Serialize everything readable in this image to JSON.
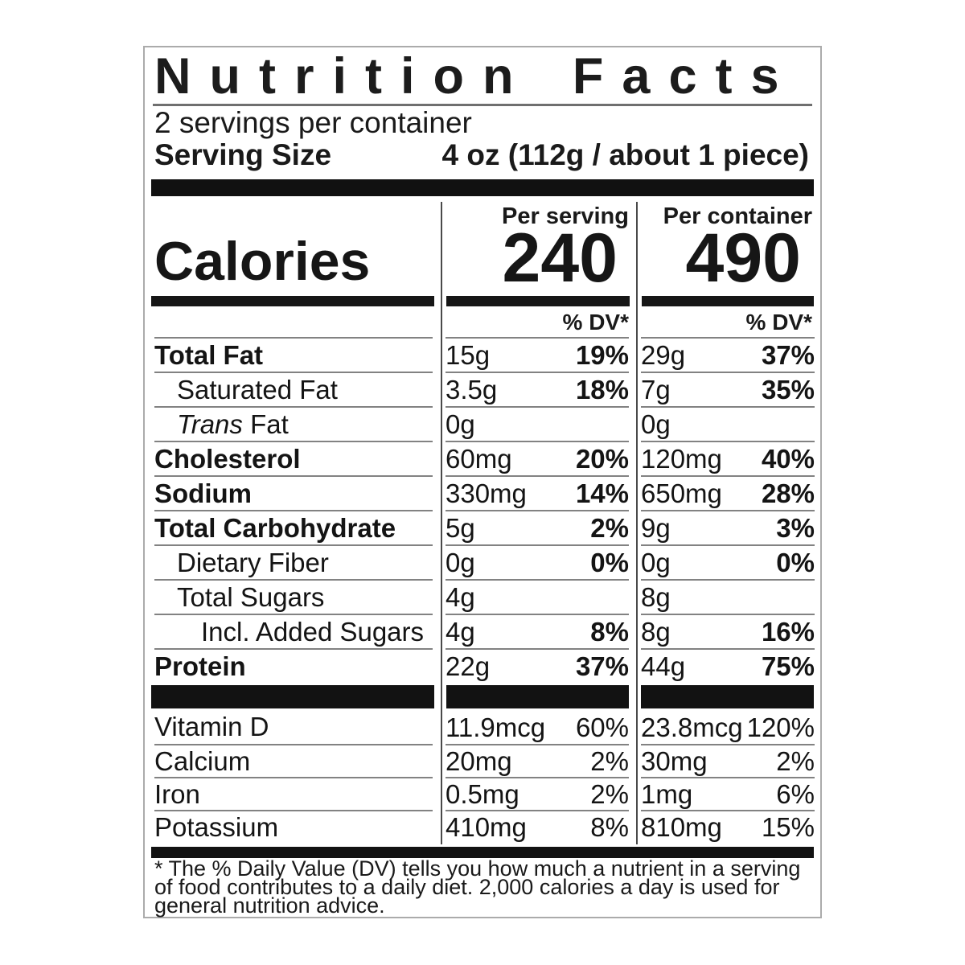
{
  "colors": {
    "text": "#141414",
    "bars": "#121212",
    "hairline": "#828282",
    "divider": "#4a4a4a",
    "outer_border": "#ababab",
    "background": "#ffffff"
  },
  "label": {
    "title": "Nutrition Facts",
    "servings_per_container": "2 servings per container",
    "serving_size_label": "Serving Size",
    "serving_size_value": "4 oz (112g / about 1 piece)",
    "calories_word": "Calories",
    "per_serving": {
      "header": "Per serving",
      "calories": "240",
      "dv_header": "% DV*"
    },
    "per_container": {
      "header": "Per container",
      "calories": "490",
      "dv_header": "% DV*"
    },
    "rows": [
      {
        "name": "Total Fat",
        "s_amt": "15g",
        "s_dv": "19%",
        "c_amt": "29g",
        "c_dv": "37%"
      },
      {
        "name": "Saturated Fat",
        "s_amt": "3.5g",
        "s_dv": "18%",
        "c_amt": "7g",
        "c_dv": "35%"
      },
      {
        "name_italic": "Trans",
        "name": " Fat",
        "s_amt": "0g",
        "s_dv": "",
        "c_amt": "0g",
        "c_dv": ""
      },
      {
        "name": "Cholesterol",
        "s_amt": "60mg",
        "s_dv": "20%",
        "c_amt": "120mg",
        "c_dv": "40%"
      },
      {
        "name": "Sodium",
        "s_amt": "330mg",
        "s_dv": "14%",
        "c_amt": "650mg",
        "c_dv": "28%"
      },
      {
        "name": "Total Carbohydrate",
        "s_amt": "5g",
        "s_dv": "2%",
        "c_amt": "9g",
        "c_dv": "3%"
      },
      {
        "name": "Dietary Fiber",
        "s_amt": "0g",
        "s_dv": "0%",
        "c_amt": "0g",
        "c_dv": "0%"
      },
      {
        "name": "Total Sugars",
        "s_amt": "4g",
        "s_dv": "",
        "c_amt": "8g",
        "c_dv": ""
      },
      {
        "name": "Incl. Added Sugars",
        "s_amt": "4g",
        "s_dv": "8%",
        "c_amt": "8g",
        "c_dv": "16%"
      },
      {
        "name": "Protein",
        "s_amt": "22g",
        "s_dv": "37%",
        "c_amt": "44g",
        "c_dv": "75%"
      }
    ],
    "vitamins": [
      {
        "name": "Vitamin D",
        "s_amt": "11.9mcg",
        "s_dv": "60%",
        "c_amt": "23.8mcg",
        "c_dv": "120%"
      },
      {
        "name": "Calcium",
        "s_amt": "20mg",
        "s_dv": "2%",
        "c_amt": "30mg",
        "c_dv": "2%"
      },
      {
        "name": "Iron",
        "s_amt": "0.5mg",
        "s_dv": "2%",
        "c_amt": "1mg",
        "c_dv": "6%"
      },
      {
        "name": "Potassium",
        "s_amt": "410mg",
        "s_dv": "8%",
        "c_amt": "810mg",
        "c_dv": "15%"
      }
    ],
    "footnote": "* The % Daily Value (DV) tells you how much a nutrient in a serving of food contributes to a daily diet. 2,000 calories a day is used for general nutrition advice."
  }
}
